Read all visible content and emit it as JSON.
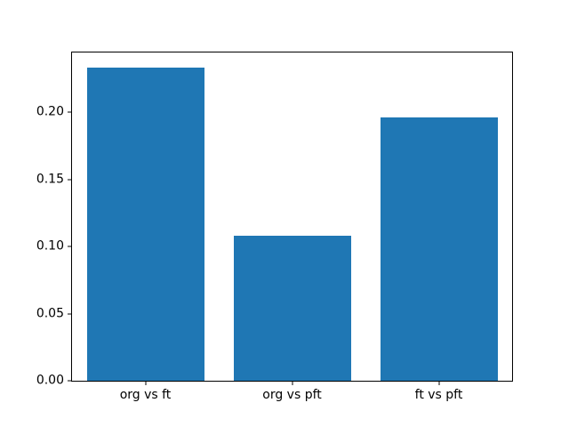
{
  "chart_data": {
    "type": "bar",
    "categories": [
      "org vs ft",
      "org vs pft",
      "ft vs pft"
    ],
    "values": [
      0.233,
      0.108,
      0.196
    ],
    "title": "",
    "xlabel": "",
    "ylabel": "",
    "ylim": [
      0,
      0.2445
    ],
    "yticks": [
      0,
      0.05,
      0.1,
      0.15,
      0.2
    ],
    "ytick_labels": [
      "0.00",
      "0.05",
      "0.10",
      "0.15",
      "0.20"
    ],
    "bar_width_fraction": 0.8,
    "bar_color": "#1f77b4",
    "axes_background": "#ffffff",
    "figure_background": "#ffffff",
    "spine_color": "#000000",
    "grid": false,
    "legend": null
  }
}
